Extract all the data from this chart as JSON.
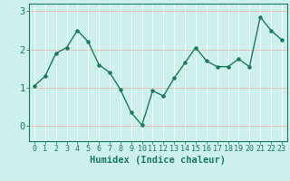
{
  "title": "",
  "xlabel": "Humidex (Indice chaleur)",
  "ylabel": "",
  "x": [
    0,
    1,
    2,
    3,
    4,
    5,
    6,
    7,
    8,
    9,
    10,
    11,
    12,
    13,
    14,
    15,
    16,
    17,
    18,
    19,
    20,
    21,
    22,
    23
  ],
  "y": [
    1.05,
    1.3,
    1.9,
    2.05,
    2.5,
    2.2,
    1.6,
    1.4,
    0.95,
    0.35,
    0.02,
    0.92,
    0.78,
    1.25,
    1.65,
    2.05,
    1.7,
    1.55,
    1.55,
    1.75,
    1.55,
    2.85,
    2.5,
    2.25
  ],
  "line_color": "#1a7a5e",
  "marker": "o",
  "marker_size": 2.2,
  "line_width": 1.0,
  "bg_color": "#cef0ec",
  "grid_color": "#ffffff",
  "tick_color": "#1a7a5e",
  "axis_color": "#1a7a5e",
  "xlabel_color": "#1a7a5e",
  "ylim": [
    -0.4,
    3.2
  ],
  "xlim": [
    -0.5,
    23.5
  ],
  "yticks": [
    0,
    1,
    2,
    3
  ],
  "xtick_labels": [
    "0",
    "1",
    "2",
    "3",
    "4",
    "5",
    "6",
    "7",
    "8",
    "9",
    "10",
    "11",
    "12",
    "13",
    "14",
    "15",
    "16",
    "17",
    "18",
    "19",
    "20",
    "21",
    "22",
    "23"
  ],
  "xlabel_fontsize": 7.5,
  "tick_fontsize": 6.0,
  "ytick_fontsize": 7.5
}
